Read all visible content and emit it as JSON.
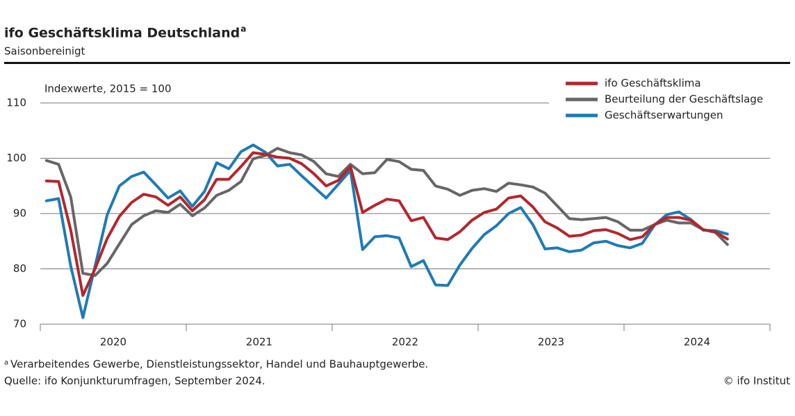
{
  "chart_data": {
    "type": "line",
    "title": "ifo Geschäftsklima Deutschland",
    "title_marker": "a",
    "subtitle": "Saisonbereinigt",
    "annotation": "Indexwerte, 2015 = 100",
    "footnote_marker": "a",
    "footnote": "Verarbeitendes Gewerbe, Dienstleistungssektor, Handel und Bauhauptgewerbe.",
    "source": "Quelle: ifo Konjunkturumfragen, September 2024.",
    "copyright": "© ifo Institut",
    "years": [
      "2020",
      "2021",
      "2022",
      "2023",
      "2024"
    ],
    "ylim": [
      70,
      110
    ],
    "yticks": [
      70,
      80,
      90,
      100,
      110
    ],
    "grid": true,
    "legend": "top-right",
    "series": [
      {
        "name": "ifo Geschäftsklima",
        "color": "#b3262d",
        "values": [
          95.9,
          95.8,
          87,
          75.2,
          80,
          85.5,
          89.5,
          92,
          93.5,
          93,
          91.5,
          93,
          90.5,
          92.5,
          96.2,
          96.2,
          98.5,
          101,
          100.7,
          100.2,
          100,
          99,
          97.2,
          95,
          96,
          98.5,
          90.2,
          91.5,
          92.6,
          92.3,
          88.7,
          89.3,
          85.6,
          85.3,
          86.7,
          88.8,
          90.2,
          90.8,
          92.8,
          93.2,
          91.2,
          88.5,
          87.4,
          85.9,
          86.1,
          86.9,
          87.1,
          86.4,
          85.3,
          85.8,
          88,
          89.3,
          89.3,
          88.8,
          87.1,
          86.7,
          85.4
        ]
      },
      {
        "name": "Beurteilung der Geschäftslage",
        "color": "#666666",
        "values": [
          99.6,
          98.9,
          93,
          79.2,
          78.8,
          81,
          84.5,
          88,
          89.6,
          90.5,
          90.2,
          91.7,
          89.6,
          91,
          93.3,
          94.2,
          95.8,
          99.9,
          100.5,
          101.8,
          101,
          100.6,
          99.4,
          97.2,
          96.7,
          98.9,
          97.2,
          97.4,
          99.8,
          99.4,
          98,
          97.8,
          95,
          94.4,
          93.3,
          94.2,
          94.5,
          94,
          95.5,
          95.2,
          94.8,
          93.7,
          91.4,
          89.1,
          88.9,
          89.1,
          89.3,
          88.5,
          87,
          87,
          88,
          88.8,
          88.3,
          88.3,
          87.1,
          86.6,
          84.4
        ]
      },
      {
        "name": "Geschäftserwartungen",
        "color": "#1f7ab5",
        "values": [
          92.3,
          92.7,
          80.5,
          71.2,
          80.5,
          89.8,
          95,
          96.7,
          97.5,
          95.2,
          92.8,
          94.1,
          91.3,
          94,
          99.2,
          98.1,
          101.2,
          102.4,
          101.1,
          98.6,
          98.9,
          96.8,
          94.8,
          92.8,
          95.3,
          97.8,
          83.5,
          85.8,
          86,
          85.6,
          80.4,
          81.5,
          77.1,
          77,
          80.7,
          83.7,
          86.2,
          87.8,
          90,
          91.1,
          88,
          83.6,
          83.8,
          83.1,
          83.4,
          84.7,
          85,
          84.2,
          83.8,
          84.6,
          87.9,
          89.8,
          90.3,
          88.9,
          87,
          86.9,
          86.3
        ]
      }
    ]
  }
}
